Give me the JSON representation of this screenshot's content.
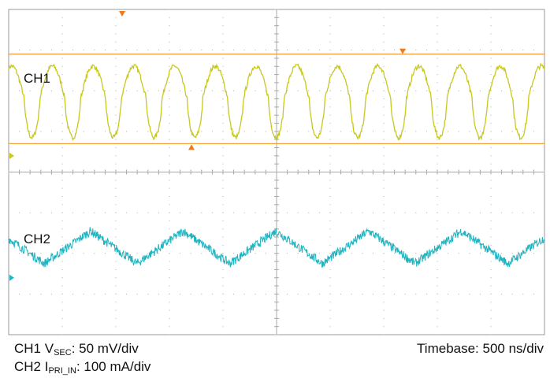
{
  "chart_data": {
    "type": "line",
    "title": "",
    "grid": true,
    "x_divisions": 10,
    "y_divisions": 8,
    "series": [
      {
        "name": "CH1",
        "color": "#c8c81e",
        "center_div": 2.2,
        "amplitude_div": 0.95,
        "period_div": 0.76,
        "cursor_levels_div": [
          1.1,
          3.3
        ]
      },
      {
        "name": "CH2",
        "color": "#1eb4c0",
        "center_div": 5.85,
        "amplitude_div": 0.4,
        "period_div": 1.73
      }
    ]
  },
  "labels": {
    "ch1_on_screen": "CH1",
    "ch2_on_screen": "CH2",
    "ch1_prefix": "CH1 V",
    "ch1_sub": "SEC",
    "ch1_scale": ": 50 mV/div",
    "ch2_prefix": "CH2 I",
    "ch2_sub": "PRI_IN",
    "ch2_scale": ": 100 mA/div",
    "timebase": "Timebase: 500 ns/div"
  },
  "colors": {
    "grid": "#a8a8a8",
    "cursor": "#f5a33a",
    "marker": "#f07a1a"
  }
}
